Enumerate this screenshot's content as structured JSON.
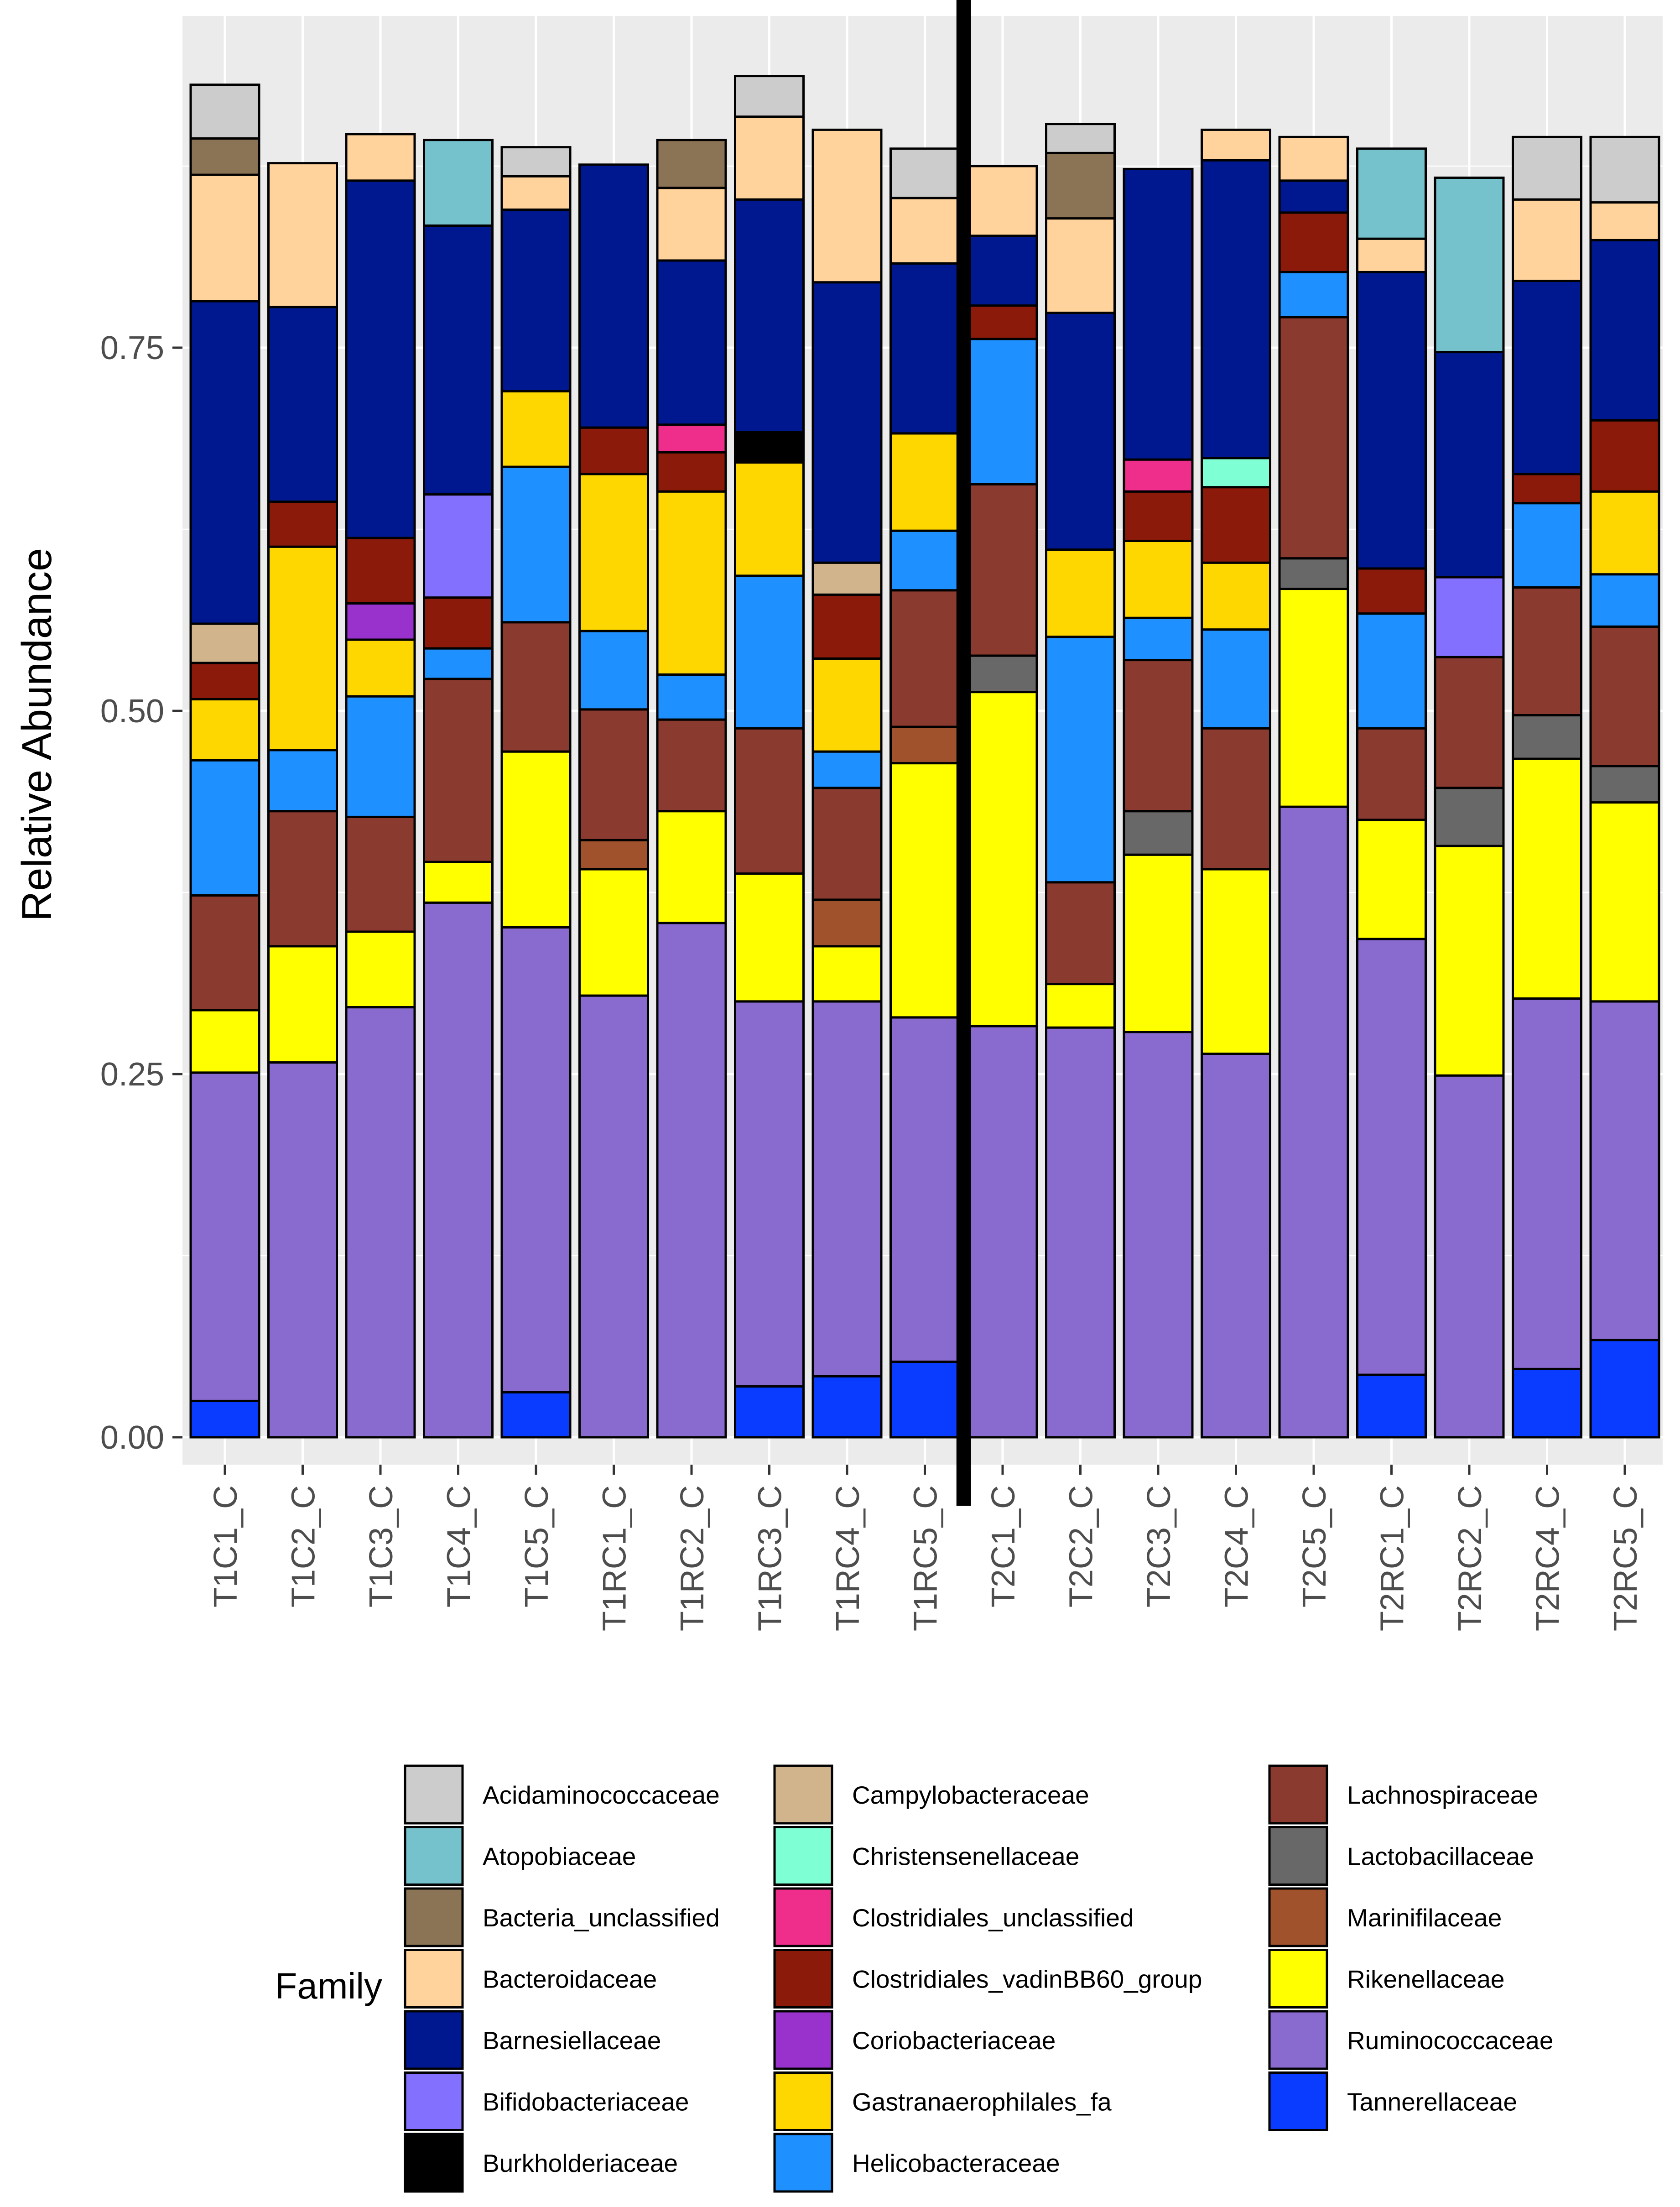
{
  "chart_data": {
    "type": "bar",
    "stacked": true,
    "ylabel": "Relative Abundance",
    "xlabel": "",
    "ylim": [
      -0.045,
      0.985
    ],
    "yticks": [
      0.0,
      0.25,
      0.5,
      0.75
    ],
    "ytick_labels": [
      "0.00",
      "0.25",
      "0.50",
      "0.75"
    ],
    "divider_after_category": "T1RC5_C",
    "categories": [
      "T1C1_C",
      "T1C2_C",
      "T1C3_C",
      "T1C4_C",
      "T1C5_C",
      "T1RC1_C",
      "T1RC2_C",
      "T1RC3_C",
      "T1RC4_C",
      "T1RC5_C",
      "T2C1_C",
      "T2C2_C",
      "T2C3_C",
      "T2C4_C",
      "T2C5_C",
      "T2RC1_C",
      "T2RC2_C",
      "T2RC4_C",
      "T2RC5_C"
    ],
    "legend": {
      "title": "Family",
      "position": "bottom",
      "columns": 3
    },
    "series": [
      {
        "name": "Acidaminococcaceae",
        "color": "#cccccc",
        "values": [
          0.037,
          0,
          0,
          0,
          0.02,
          0,
          0,
          0.028,
          0,
          0.034,
          0,
          0.02,
          0,
          0,
          0,
          0,
          0,
          0.043,
          0.045
        ]
      },
      {
        "name": "Atopobiaceae",
        "color": "#76c2cc",
        "values": [
          0,
          0,
          0,
          0.059,
          0,
          0,
          0,
          0,
          0,
          0,
          0,
          0,
          0,
          0,
          0,
          0.062,
          0.12,
          0,
          0
        ]
      },
      {
        "name": "Bacteria_unclassified",
        "color": "#8b7355",
        "values": [
          0.025,
          0,
          0,
          0,
          0,
          0,
          0.033,
          0,
          0,
          0,
          0,
          0.045,
          0,
          0,
          0,
          0,
          0,
          0,
          0
        ]
      },
      {
        "name": "Bacteroidaceae",
        "color": "#ffd39b",
        "values": [
          0.087,
          0.099,
          0.032,
          0,
          0.023,
          0,
          0.05,
          0.057,
          0.105,
          0.045,
          0.048,
          0.065,
          0,
          0.021,
          0.03,
          0.023,
          0,
          0.056,
          0.026
        ]
      },
      {
        "name": "Barnesiellaceae",
        "color": "#00188f",
        "values": [
          0.222,
          0.134,
          0.246,
          0.185,
          0.125,
          0.181,
          0.113,
          0.16,
          0.193,
          0.117,
          0.048,
          0.163,
          0.2,
          0.205,
          0.022,
          0.204,
          0.155,
          0.133,
          0.124
        ]
      },
      {
        "name": "Bifidobacteriaceae",
        "color": "#8470ff",
        "values": [
          0,
          0,
          0,
          0.071,
          0,
          0,
          0,
          0,
          0,
          0,
          0,
          0,
          0,
          0,
          0,
          0,
          0.055,
          0,
          0
        ]
      },
      {
        "name": "Burkholderiaceae",
        "color": "#000000",
        "values": [
          0,
          0,
          0,
          0,
          0,
          0,
          0,
          0.021,
          0,
          0,
          0,
          0,
          0,
          0,
          0,
          0,
          0,
          0,
          0
        ]
      },
      {
        "name": "Campylobacteraceae",
        "color": "#d2b48c",
        "values": [
          0.027,
          0,
          0,
          0,
          0,
          0,
          0,
          0,
          0.022,
          0,
          0,
          0,
          0,
          0,
          0,
          0,
          0,
          0,
          0
        ]
      },
      {
        "name": "Christensenellaceae",
        "color": "#7fffd4",
        "values": [
          0,
          0,
          0,
          0,
          0,
          0,
          0,
          0,
          0,
          0,
          0,
          0,
          0,
          0.02,
          0,
          0,
          0,
          0,
          0
        ]
      },
      {
        "name": "Clostridiales_unclassified",
        "color": "#ee2e8a",
        "values": [
          0,
          0,
          0,
          0,
          0,
          0,
          0.019,
          0,
          0,
          0,
          0,
          0,
          0.022,
          0,
          0,
          0,
          0,
          0,
          0
        ]
      },
      {
        "name": "Clostridiales_vadinBB60_group",
        "color": "#8b1a0a",
        "values": [
          0.025,
          0.031,
          0.045,
          0.035,
          0,
          0.032,
          0.027,
          0,
          0.044,
          0,
          0.023,
          0,
          0.034,
          0.052,
          0.041,
          0.031,
          0,
          0.02,
          0.049
        ]
      },
      {
        "name": "Coriobacteriaceae",
        "color": "#9932cc",
        "values": [
          0,
          0,
          0.025,
          0,
          0,
          0,
          0,
          0,
          0,
          0,
          0,
          0,
          0,
          0,
          0,
          0,
          0,
          0,
          0
        ]
      },
      {
        "name": "Gastranaerophilales_fa",
        "color": "#ffd700",
        "values": [
          0.042,
          0.14,
          0.039,
          0,
          0.052,
          0.108,
          0.126,
          0.078,
          0.064,
          0.067,
          0,
          0.06,
          0.053,
          0.046,
          0,
          0,
          0,
          0,
          0.057
        ]
      },
      {
        "name": "Helicobacteraceae",
        "color": "#1e90ff",
        "values": [
          0.093,
          0.042,
          0.083,
          0.021,
          0.107,
          0.054,
          0.031,
          0.105,
          0.025,
          0.041,
          0.1,
          0.169,
          0.029,
          0.068,
          0.031,
          0.079,
          0,
          0.058,
          0.036
        ]
      },
      {
        "name": "Lachnospiraceae",
        "color": "#8b3a2f",
        "values": [
          0.079,
          0.093,
          0.079,
          0.126,
          0.089,
          0.09,
          0.063,
          0.1,
          0.077,
          0.094,
          0.118,
          0.07,
          0.104,
          0.097,
          0.166,
          0.063,
          0.09,
          0.088,
          0.096
        ]
      },
      {
        "name": "Lactobacillaceae",
        "color": "#686868",
        "values": [
          0,
          0,
          0,
          0,
          0,
          0,
          0,
          0,
          0,
          0,
          0.025,
          0,
          0.03,
          0,
          0.021,
          0,
          0.04,
          0.03,
          0.025
        ]
      },
      {
        "name": "Marinifilaceae",
        "color": "#a0522d",
        "values": [
          0,
          0,
          0,
          0,
          0,
          0.02,
          0,
          0,
          0.032,
          0.025,
          0,
          0,
          0,
          0,
          0,
          0,
          0,
          0,
          0
        ]
      },
      {
        "name": "Rikenellaceae",
        "color": "#ffff00",
        "values": [
          0.043,
          0.08,
          0.052,
          0.028,
          0.121,
          0.087,
          0.077,
          0.088,
          0.038,
          0.175,
          0.23,
          0.03,
          0.122,
          0.127,
          0.15,
          0.082,
          0.158,
          0.165,
          0.137
        ]
      },
      {
        "name": "Ruminococcaceae",
        "color": "#896bd0",
        "values": [
          0.226,
          0.258,
          0.296,
          0.368,
          0.32,
          0.304,
          0.354,
          0.265,
          0.258,
          0.237,
          0.283,
          0.282,
          0.279,
          0.264,
          0.434,
          0.3,
          0.249,
          0.255,
          0.233
        ]
      },
      {
        "name": "Tannerellaceae",
        "color": "#0a3cff",
        "values": [
          0.025,
          0,
          0,
          0,
          0.031,
          0,
          0,
          0.035,
          0.042,
          0.052,
          0,
          0,
          0,
          0,
          0,
          0.043,
          0,
          0.047,
          0.067
        ]
      }
    ],
    "stack_order_bottom_to_top": [
      "Tannerellaceae",
      "Ruminococcaceae",
      "Rikenellaceae",
      "Marinifilaceae",
      "Lactobacillaceae",
      "Lachnospiraceae",
      "Helicobacteraceae",
      "Gastranaerophilales_fa",
      "Coriobacteriaceae",
      "Clostridiales_vadinBB60_group",
      "Clostridiales_unclassified",
      "Christensenellaceae",
      "Campylobacteraceae",
      "Burkholderiaceae",
      "Bifidobacteriaceae",
      "Barnesiellaceae",
      "Bacteroidaceae",
      "Bacteria_unclassified",
      "Atopobiaceae",
      "Acidaminococcaceae"
    ]
  }
}
